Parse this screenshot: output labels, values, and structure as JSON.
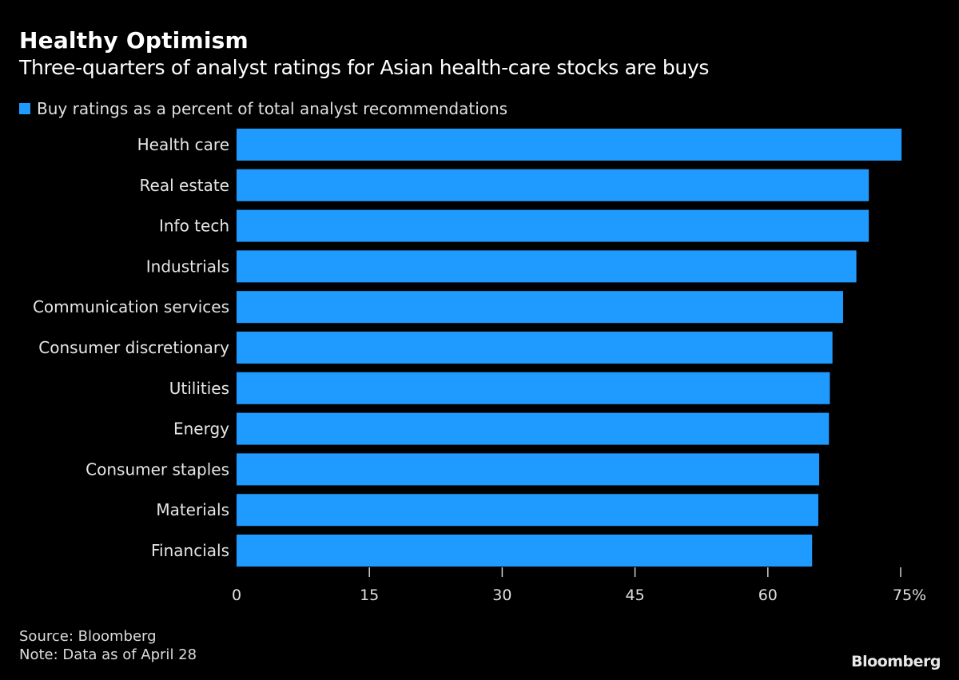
{
  "header": {
    "title": "Healthy Optimism",
    "subtitle": "Three-quarters of analyst ratings for Asian health-care stocks are buys"
  },
  "footer": {
    "source": "Source: Bloomberg",
    "note": "Note: Data as of April 28",
    "logo": "Bloomberg"
  },
  "colors": {
    "bar": "#1f9bff",
    "background": "#000000",
    "text": "#e6e6e6"
  },
  "chart_data": {
    "type": "bar",
    "orientation": "horizontal",
    "title": "Healthy Optimism",
    "subtitle": "Three-quarters of analyst ratings for Asian health-care stocks are buys",
    "legend": [
      "Buy ratings as a percent of total analyst recommendations"
    ],
    "legend_position": "top-left",
    "categories": [
      "Health care",
      "Real estate",
      "Info tech",
      "Industrials",
      "Communication services",
      "Consumer discretionary",
      "Utilities",
      "Energy",
      "Consumer staples",
      "Materials",
      "Financials"
    ],
    "series": [
      {
        "name": "Buy ratings as a percent of total analyst recommendations",
        "values": [
          75.1,
          71.4,
          71.4,
          70.0,
          68.5,
          67.3,
          67.0,
          66.9,
          65.8,
          65.7,
          65.0
        ]
      }
    ],
    "xlim": [
      0,
      75
    ],
    "xticks": [
      0,
      15,
      30,
      45,
      60,
      75
    ],
    "xtick_labels": [
      "0",
      "15",
      "30",
      "45",
      "60",
      "75%"
    ],
    "xlabel": "",
    "ylabel": "",
    "grid": false
  }
}
